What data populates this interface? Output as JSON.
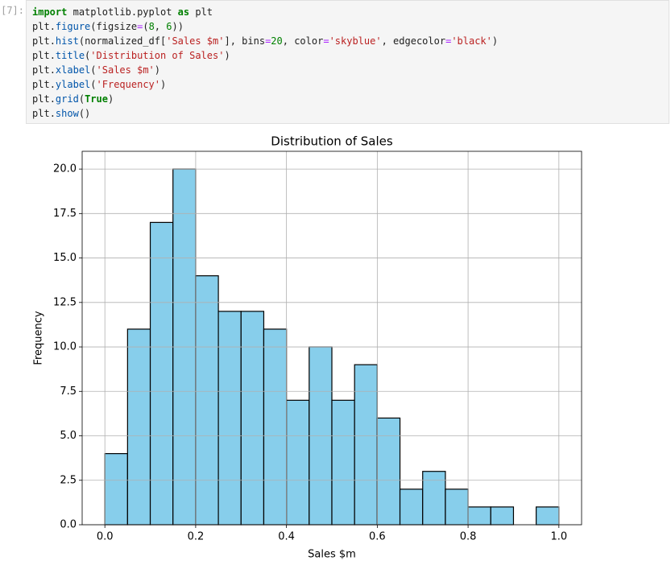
{
  "cell": {
    "prompt": "[7]:",
    "code": [
      "import matplotlib.pyplot as plt",
      "plt.figure(figsize=(8, 6))",
      "plt.hist(normalized_df['Sales $m'], bins=20, color='skyblue', edgecolor='black')",
      "plt.title('Distribution of Sales')",
      "plt.xlabel('Sales $m')",
      "plt.ylabel('Frequency')",
      "plt.grid(True)",
      "plt.show()"
    ]
  },
  "chart_data": {
    "type": "histogram",
    "title": "Distribution of Sales",
    "x_label": "Sales $m",
    "y_label": "Frequency",
    "bins": [
      0,
      0.05,
      0.1,
      0.15,
      0.2,
      0.25,
      0.3,
      0.35,
      0.4,
      0.45,
      0.5,
      0.55,
      0.6,
      0.65,
      0.7,
      0.75,
      0.8,
      0.85,
      0.9,
      0.95,
      1
    ],
    "values": [
      4,
      11,
      17,
      20,
      14,
      12,
      12,
      11,
      7,
      10,
      7,
      9,
      6,
      2,
      3,
      2,
      1,
      1,
      0,
      1
    ],
    "color": "#87ceeb",
    "edgecolor": "#000000",
    "xlim": [
      -0.05,
      1.05
    ],
    "xticks": [
      {
        "value": 0,
        "label": "0.0"
      },
      0.2,
      0.4,
      0.6,
      0.8,
      {
        "value": 1,
        "label": "1.0"
      }
    ],
    "ylim": [
      0,
      21
    ],
    "yticks": [
      {
        "value": 0,
        "label": "0.0"
      },
      2.5,
      {
        "value": 5,
        "label": "5.0"
      },
      7.5,
      {
        "value": 10,
        "label": "10.0"
      },
      12.5,
      {
        "value": 15,
        "label": "15.0"
      },
      17.5,
      {
        "value": 20,
        "label": "20.0"
      }
    ],
    "grid": true
  }
}
